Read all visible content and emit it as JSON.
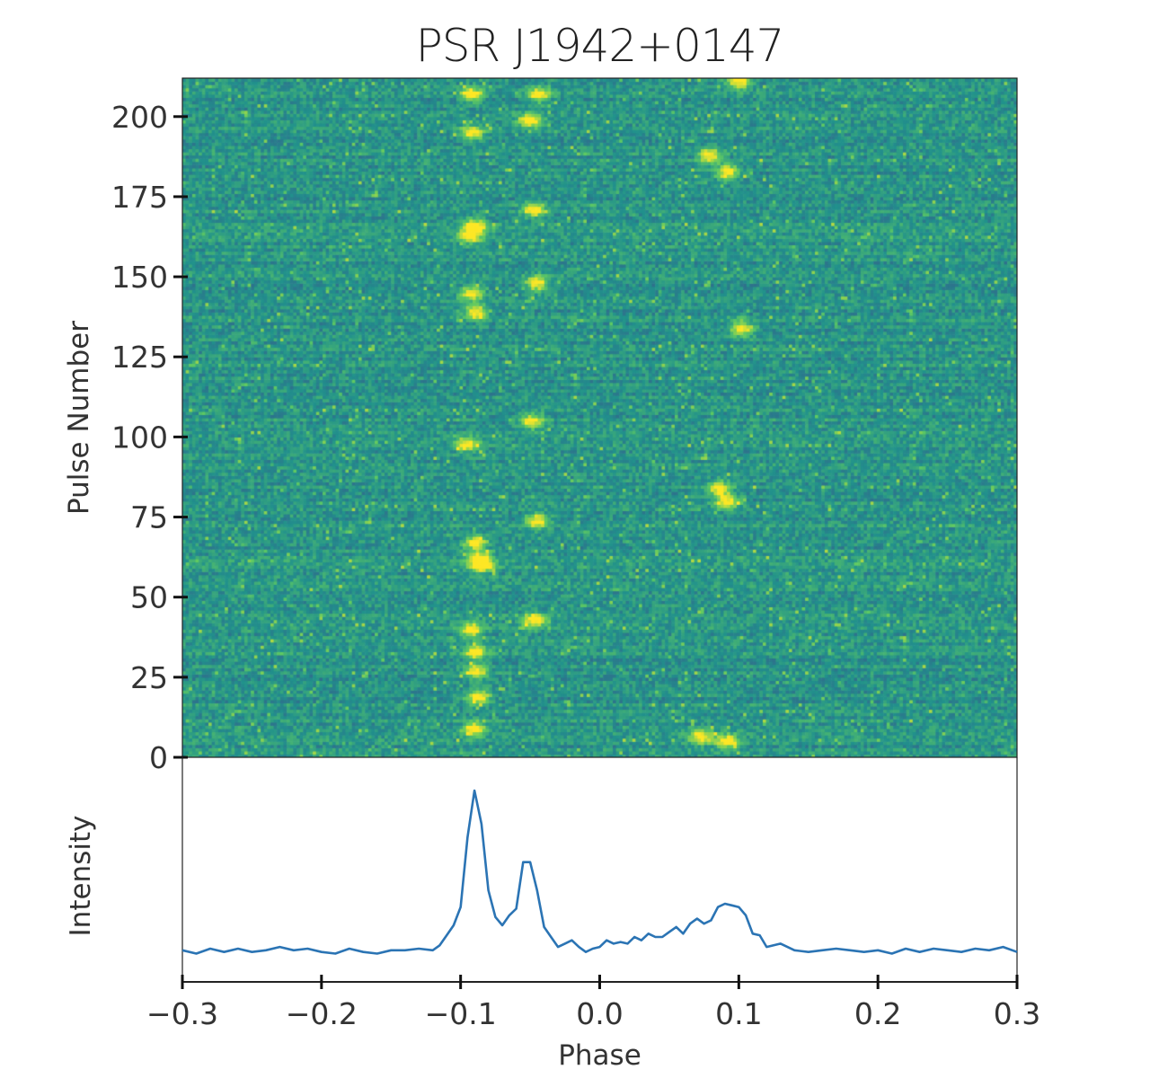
{
  "chart_data": [
    {
      "type": "heatmap",
      "title": "PSR J1942+0147",
      "xlabel": "",
      "ylabel": "Pulse Number",
      "xlim": [
        -0.3,
        0.3
      ],
      "ylim": [
        0,
        212
      ],
      "yticks": [
        0,
        25,
        50,
        75,
        100,
        125,
        150,
        175,
        200
      ],
      "colormap": [
        "#3b528b",
        "#21918c",
        "#5ec962",
        "#fde725"
      ],
      "bright_spots": [
        [
          -0.092,
          207
        ],
        [
          -0.092,
          195
        ],
        [
          -0.044,
          207
        ],
        [
          -0.05,
          199
        ],
        [
          0.1,
          211
        ],
        [
          0.079,
          188
        ],
        [
          0.092,
          183
        ],
        [
          -0.089,
          166
        ],
        [
          -0.093,
          163
        ],
        [
          -0.047,
          171
        ],
        [
          -0.092,
          145
        ],
        [
          -0.089,
          139
        ],
        [
          -0.045,
          148
        ],
        [
          0.102,
          134
        ],
        [
          -0.095,
          98
        ],
        [
          -0.049,
          105
        ],
        [
          0.086,
          84
        ],
        [
          0.092,
          80
        ],
        [
          -0.089,
          67
        ],
        [
          -0.087,
          62
        ],
        [
          -0.084,
          60
        ],
        [
          -0.045,
          74
        ],
        [
          -0.047,
          43
        ],
        [
          -0.092,
          40
        ],
        [
          -0.089,
          33
        ],
        [
          -0.089,
          27
        ],
        [
          -0.087,
          19
        ],
        [
          -0.09,
          9
        ],
        [
          0.073,
          6.5
        ],
        [
          0.092,
          5
        ]
      ]
    },
    {
      "type": "line",
      "xlabel": "Phase",
      "ylabel": "Intensity",
      "xlim": [
        -0.3,
        0.3
      ],
      "ylim": [
        -0.15,
        1.2
      ],
      "xticks": [
        "-0.3",
        "-0.2",
        "-0.1",
        "0.0",
        "0.1",
        "0.2",
        "0.3"
      ],
      "color": "#2b74b4",
      "x": [
        -0.3,
        -0.29,
        -0.28,
        -0.27,
        -0.26,
        -0.25,
        -0.24,
        -0.23,
        -0.22,
        -0.21,
        -0.2,
        -0.19,
        -0.18,
        -0.17,
        -0.16,
        -0.15,
        -0.14,
        -0.13,
        -0.12,
        -0.115,
        -0.11,
        -0.105,
        -0.1,
        -0.095,
        -0.09,
        -0.085,
        -0.08,
        -0.075,
        -0.07,
        -0.065,
        -0.06,
        -0.055,
        -0.05,
        -0.045,
        -0.04,
        -0.035,
        -0.03,
        -0.025,
        -0.02,
        -0.015,
        -0.01,
        -0.005,
        0.0,
        0.005,
        0.01,
        0.015,
        0.02,
        0.025,
        0.03,
        0.035,
        0.04,
        0.045,
        0.05,
        0.055,
        0.06,
        0.065,
        0.07,
        0.075,
        0.08,
        0.085,
        0.09,
        0.095,
        0.1,
        0.105,
        0.11,
        0.115,
        0.12,
        0.13,
        0.14,
        0.15,
        0.16,
        0.17,
        0.18,
        0.19,
        0.2,
        0.21,
        0.22,
        0.23,
        0.24,
        0.25,
        0.26,
        0.27,
        0.28,
        0.29,
        0.3
      ],
      "y": [
        0.04,
        0.02,
        0.05,
        0.03,
        0.05,
        0.03,
        0.04,
        0.06,
        0.04,
        0.05,
        0.03,
        0.02,
        0.05,
        0.03,
        0.02,
        0.04,
        0.04,
        0.05,
        0.04,
        0.07,
        0.13,
        0.19,
        0.3,
        0.72,
        1.0,
        0.8,
        0.4,
        0.24,
        0.19,
        0.25,
        0.29,
        0.57,
        0.57,
        0.4,
        0.18,
        0.12,
        0.06,
        0.08,
        0.1,
        0.06,
        0.03,
        0.05,
        0.06,
        0.1,
        0.08,
        0.09,
        0.08,
        0.12,
        0.1,
        0.14,
        0.12,
        0.12,
        0.15,
        0.18,
        0.14,
        0.2,
        0.23,
        0.2,
        0.22,
        0.3,
        0.32,
        0.31,
        0.3,
        0.25,
        0.14,
        0.13,
        0.06,
        0.08,
        0.04,
        0.03,
        0.04,
        0.05,
        0.04,
        0.03,
        0.04,
        0.02,
        0.05,
        0.03,
        0.05,
        0.04,
        0.03,
        0.05,
        0.04,
        0.06,
        0.03
      ]
    }
  ]
}
